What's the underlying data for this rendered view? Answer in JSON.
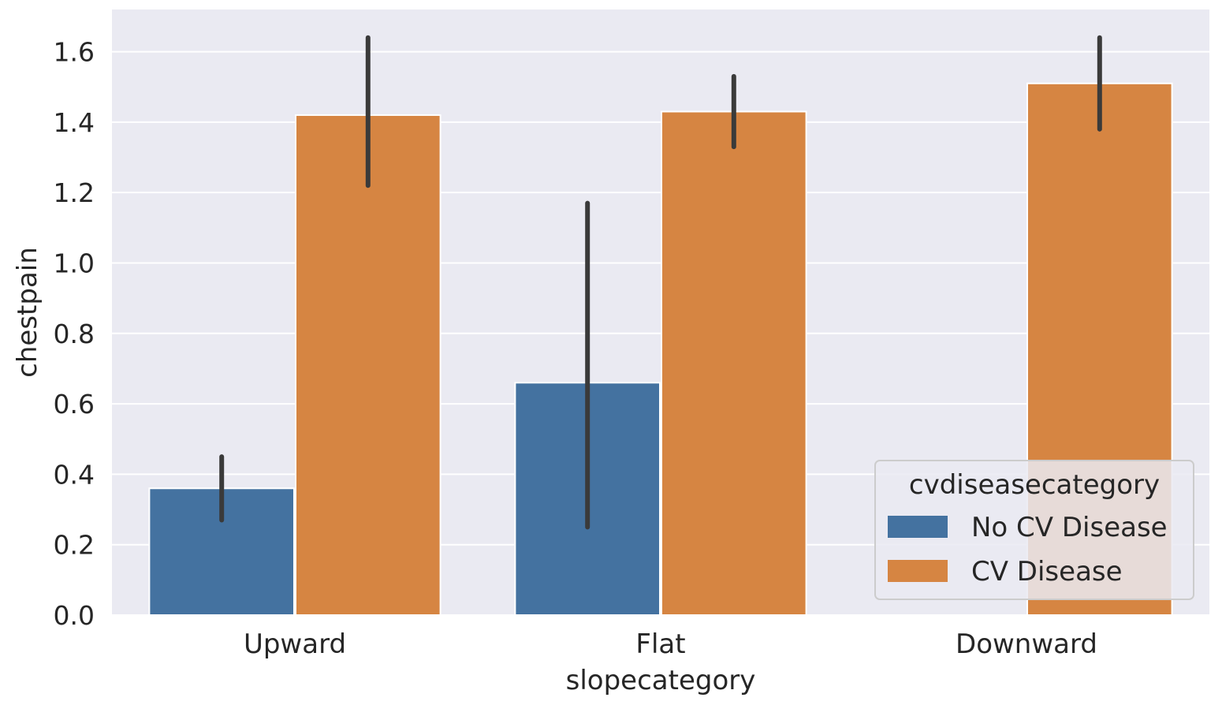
{
  "chart_data": {
    "type": "bar",
    "title": "",
    "xlabel": "slopecategory",
    "ylabel": "chestpain",
    "categories": [
      "Upward",
      "Flat",
      "Downward"
    ],
    "ylim": [
      0,
      1.72
    ],
    "yticks": [
      0.0,
      0.2,
      0.4,
      0.6,
      0.8,
      1.0,
      1.2,
      1.4,
      1.6
    ],
    "ytick_labels": [
      "0.0",
      "0.2",
      "0.4",
      "0.6",
      "0.8",
      "1.0",
      "1.2",
      "1.4",
      "1.6"
    ],
    "grid": true,
    "series": [
      {
        "name": "No CV Disease",
        "color": "#4472a0",
        "values": [
          0.36,
          0.66,
          null
        ],
        "ci_low": [
          0.27,
          0.25,
          null
        ],
        "ci_high": [
          0.45,
          1.17,
          null
        ]
      },
      {
        "name": "CV Disease",
        "color": "#d68542",
        "values": [
          1.42,
          1.43,
          1.51
        ],
        "ci_low": [
          1.22,
          1.33,
          1.38
        ],
        "ci_high": [
          1.64,
          1.53,
          1.64
        ]
      }
    ],
    "legend": {
      "title": "cvdiseasecategory",
      "placement": "lower-right"
    },
    "colors": {
      "background": "#eaeaf2",
      "grid": "#ffffff",
      "errorbar": "#3a3a3a"
    }
  }
}
